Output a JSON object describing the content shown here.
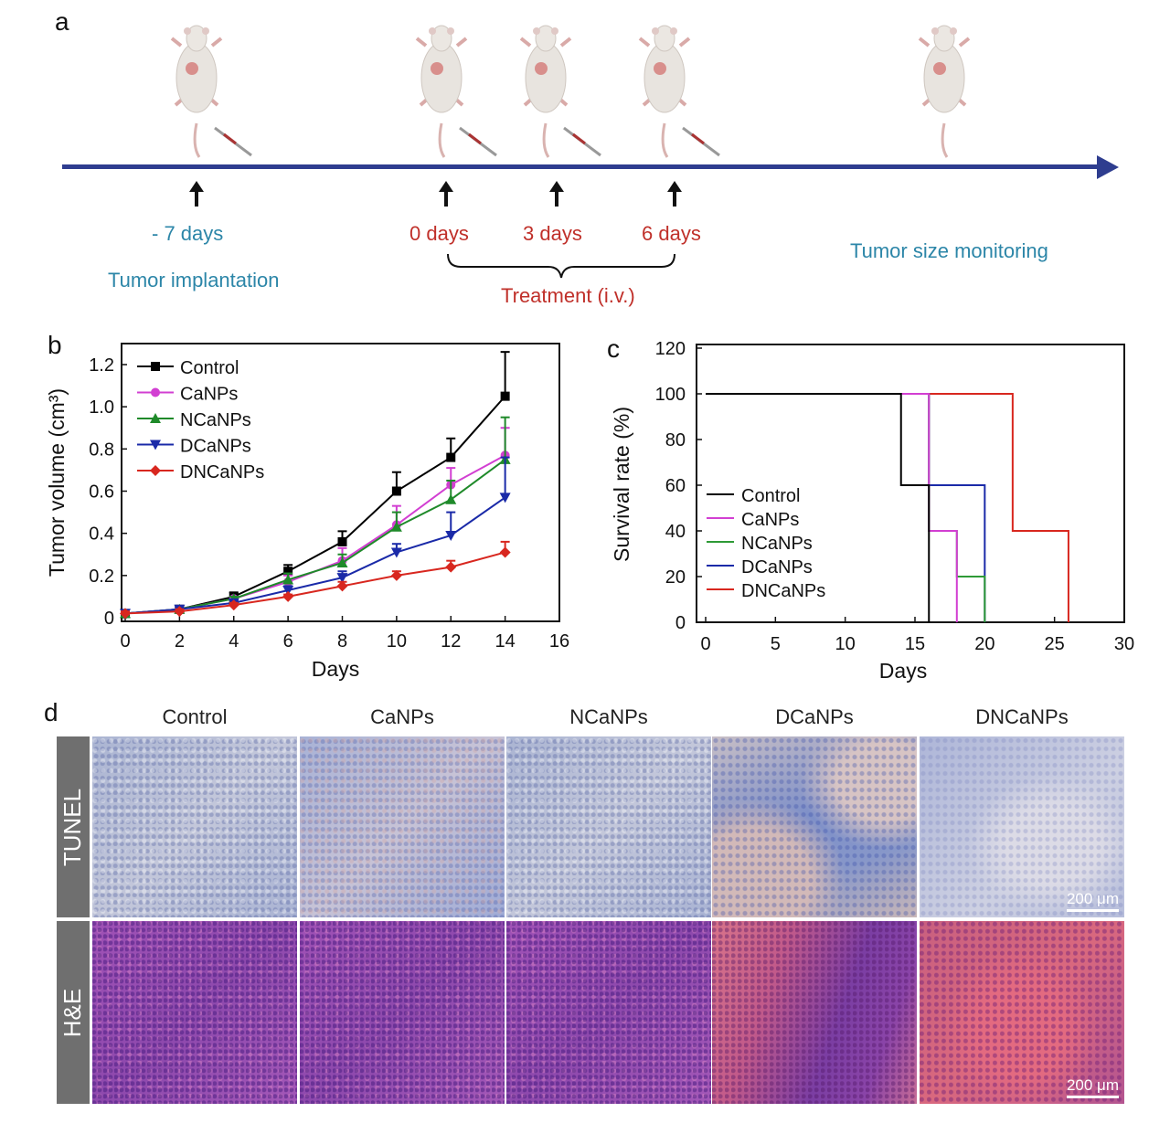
{
  "panel_labels": {
    "a": "a",
    "b": "b",
    "c": "c",
    "d": "d"
  },
  "timeline": {
    "events": [
      {
        "time": "- 7 days",
        "caption": "Tumor implantation"
      },
      {
        "time": "0 days"
      },
      {
        "time": "3 days"
      },
      {
        "time": "6 days"
      }
    ],
    "treatment_label": "Treatment (i.v.)",
    "monitoring_label": "Tumor size monitoring",
    "colors": {
      "axis": "#2e3d8f",
      "blue_text": "#2c86a8",
      "red_text": "#c0302a"
    }
  },
  "chart_data": [
    {
      "type": "line",
      "title": "",
      "xlabel": "Days",
      "ylabel": "Tumor volume (cm³)",
      "xlim": [
        0,
        16
      ],
      "ylim": [
        0,
        1.3
      ],
      "xticks": [
        0,
        2,
        4,
        6,
        8,
        10,
        12,
        14,
        16
      ],
      "yticks": [
        0,
        0.2,
        0.4,
        0.6,
        0.8,
        1.0,
        1.2
      ],
      "ytick_labels": [
        "0",
        "0.2",
        "0.4",
        "0.6",
        "0.8",
        "1.0",
        "1.2"
      ],
      "legend": "top-left",
      "x": [
        0,
        2,
        4,
        6,
        8,
        10,
        12,
        14
      ],
      "series": [
        {
          "name": "Control",
          "color": "#000000",
          "marker": "square",
          "values": [
            0.02,
            0.04,
            0.1,
            0.22,
            0.36,
            0.6,
            0.76,
            1.05
          ],
          "error": [
            0.01,
            0.01,
            0.02,
            0.03,
            0.05,
            0.09,
            0.09,
            0.21
          ]
        },
        {
          "name": "CaNPs",
          "color": "#d23fd2",
          "marker": "circle",
          "values": [
            0.02,
            0.04,
            0.09,
            0.17,
            0.27,
            0.44,
            0.63,
            0.77
          ],
          "error": [
            0.01,
            0.01,
            0.01,
            0.03,
            0.06,
            0.09,
            0.08,
            0.13
          ]
        },
        {
          "name": "NCaNPs",
          "color": "#1f8a2a",
          "marker": "triangle-up",
          "values": [
            0.02,
            0.04,
            0.09,
            0.18,
            0.26,
            0.43,
            0.56,
            0.75
          ],
          "error": [
            0.01,
            0.01,
            0.01,
            0.03,
            0.04,
            0.07,
            0.09,
            0.2
          ]
        },
        {
          "name": "DCaNPs",
          "color": "#1a2aa8",
          "marker": "triangle-down",
          "values": [
            0.02,
            0.04,
            0.07,
            0.13,
            0.19,
            0.31,
            0.39,
            0.57
          ],
          "error": [
            0.01,
            0.01,
            0.01,
            0.02,
            0.03,
            0.04,
            0.11,
            0.19
          ]
        },
        {
          "name": "DNCaNPs",
          "color": "#d8271f",
          "marker": "diamond",
          "values": [
            0.02,
            0.03,
            0.06,
            0.1,
            0.15,
            0.2,
            0.24,
            0.31
          ],
          "error": [
            0.01,
            0.01,
            0.01,
            0.01,
            0.02,
            0.02,
            0.03,
            0.05
          ]
        }
      ]
    },
    {
      "type": "line",
      "subtype": "step",
      "title": "",
      "xlabel": "Days",
      "ylabel": "Survival rate (%)",
      "xlim": [
        0,
        30
      ],
      "ylim": [
        0,
        120
      ],
      "xticks": [
        0,
        5,
        10,
        15,
        20,
        25,
        30
      ],
      "yticks": [
        0,
        20,
        40,
        60,
        80,
        100,
        120
      ],
      "legend": "bottom-left",
      "series": [
        {
          "name": "Control",
          "color": "#000000",
          "points": [
            [
              0,
              100
            ],
            [
              14,
              100
            ],
            [
              14,
              60
            ],
            [
              16,
              60
            ],
            [
              16,
              0
            ]
          ]
        },
        {
          "name": "CaNPs",
          "color": "#d23fd2",
          "points": [
            [
              0,
              100
            ],
            [
              16,
              100
            ],
            [
              16,
              40
            ],
            [
              18,
              40
            ],
            [
              18,
              0
            ]
          ]
        },
        {
          "name": "NCaNPs",
          "color": "#2e9a36",
          "points": [
            [
              0,
              100
            ],
            [
              16,
              100
            ],
            [
              16,
              40
            ],
            [
              18,
              40
            ],
            [
              18,
              20
            ],
            [
              20,
              20
            ],
            [
              20,
              0
            ]
          ]
        },
        {
          "name": "DCaNPs",
          "color": "#1a2aa8",
          "points": [
            [
              0,
              100
            ],
            [
              16,
              100
            ],
            [
              16,
              60
            ],
            [
              20,
              60
            ],
            [
              20,
              0
            ]
          ]
        },
        {
          "name": "DNCaNPs",
          "color": "#d8271f",
          "points": [
            [
              0,
              100
            ],
            [
              22,
              100
            ],
            [
              22,
              40
            ],
            [
              26,
              40
            ],
            [
              26,
              0
            ]
          ]
        }
      ]
    }
  ],
  "histology": {
    "columns": [
      "Control",
      "CaNPs",
      "NCaNPs",
      "DCaNPs",
      "DNCaNPs"
    ],
    "rows": [
      "TUNEL",
      "H&E"
    ],
    "scale_bar": "200 μm"
  }
}
